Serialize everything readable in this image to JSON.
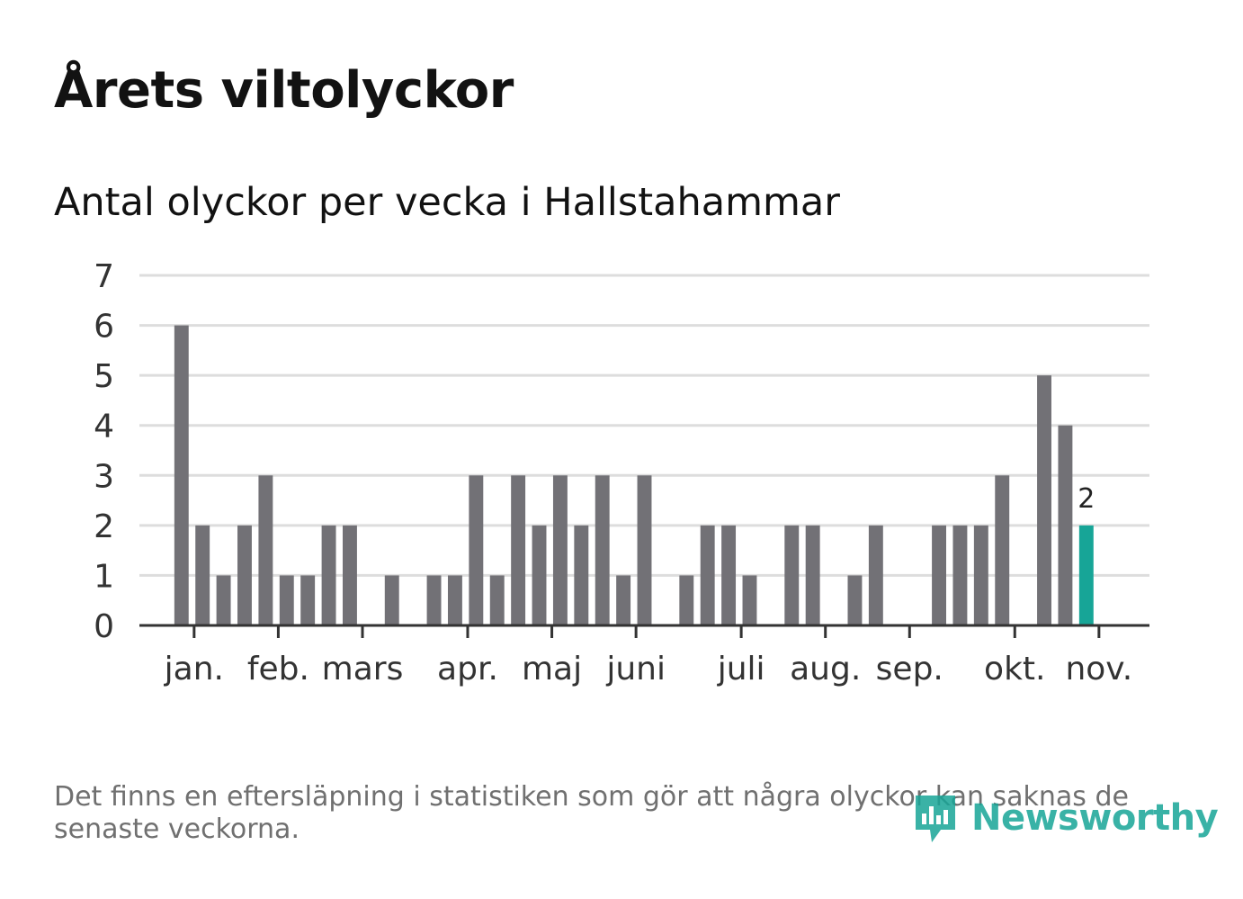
{
  "title": "Årets viltolyckor",
  "subtitle": "Antal olyckor per vecka i Hallstahammar",
  "footnote": "Det finns en eftersläpning i statistiken som gör att några olyckor kan saknas de senaste veckorna.",
  "logo": {
    "text": "Newsworthy",
    "icon": "newsworthy-logo-icon"
  },
  "colors": {
    "bar": "#727176",
    "highlight": "#17a597",
    "grid": "#dddddd",
    "axis": "#333333"
  },
  "chart_data": {
    "type": "bar",
    "title": "Antal olyckor per vecka i Hallstahammar",
    "xlabel": "",
    "ylabel": "",
    "ylim": [
      0,
      7
    ],
    "yticks": [
      0,
      1,
      2,
      3,
      4,
      5,
      6,
      7
    ],
    "weeks": [
      2,
      3,
      4,
      5,
      6,
      7,
      8,
      9,
      10,
      11,
      12,
      13,
      14,
      15,
      16,
      17,
      18,
      19,
      20,
      21,
      22,
      23,
      24,
      25,
      26,
      27,
      28,
      29,
      30,
      31,
      32,
      33,
      34,
      35,
      36,
      37,
      38,
      39,
      40,
      41,
      42,
      43,
      44,
      45,
      46
    ],
    "values": [
      6,
      2,
      1,
      2,
      3,
      1,
      1,
      2,
      2,
      0,
      1,
      0,
      1,
      1,
      3,
      1,
      3,
      2,
      3,
      2,
      3,
      1,
      3,
      0,
      1,
      2,
      2,
      1,
      0,
      2,
      2,
      0,
      1,
      2,
      0,
      0,
      2,
      2,
      2,
      3,
      0,
      5,
      4,
      2,
      0
    ],
    "highlight_index": 43,
    "highlight_label": "2",
    "month_labels": [
      {
        "label": "jan.",
        "week": 2.6
      },
      {
        "label": "feb.",
        "week": 6.6
      },
      {
        "label": "mars",
        "week": 10.6
      },
      {
        "label": "apr.",
        "week": 15.6
      },
      {
        "label": "maj",
        "week": 19.6
      },
      {
        "label": "juni",
        "week": 23.6
      },
      {
        "label": "juli",
        "week": 28.6
      },
      {
        "label": "aug.",
        "week": 32.6
      },
      {
        "label": "sep.",
        "week": 36.6
      },
      {
        "label": "okt.",
        "week": 41.6
      },
      {
        "label": "nov.",
        "week": 45.6
      }
    ],
    "x_domain": [
      0,
      48
    ]
  }
}
